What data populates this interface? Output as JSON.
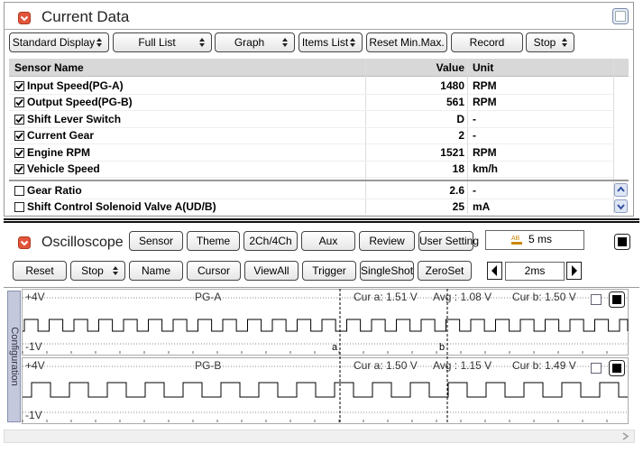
{
  "current_data": {
    "title": "Current Data",
    "toolbar": [
      {
        "label": "Standard Display",
        "dropdown": true
      },
      {
        "label": "Full List",
        "dropdown": true
      },
      {
        "label": "Graph",
        "dropdown": true
      },
      {
        "label": "Items List",
        "dropdown": true
      },
      {
        "label": "Reset Min.Max.",
        "dropdown": false
      },
      {
        "label": "Record",
        "dropdown": false
      },
      {
        "label": "Stop",
        "dropdown": true
      }
    ],
    "columns": [
      "Sensor Name",
      "Value",
      "Unit"
    ],
    "rows": [
      {
        "name": "Input Speed(PG-A)",
        "value": 1480,
        "unit": "RPM",
        "checked": true
      },
      {
        "name": "Output Speed(PG-B)",
        "value": 561,
        "unit": "RPM",
        "checked": true
      },
      {
        "name": "Shift Lever Switch",
        "value": "D",
        "unit": "-",
        "checked": true
      },
      {
        "name": "Current Gear",
        "value": 2,
        "unit": "-",
        "checked": true
      },
      {
        "name": "Engine RPM",
        "value": 1521,
        "unit": "RPM",
        "checked": true
      },
      {
        "name": "Vehicle Speed",
        "value": 18,
        "unit": "km/h",
        "checked": true
      },
      {
        "name": "Gear Ratio",
        "value": 2.6,
        "unit": "-",
        "checked": false
      },
      {
        "name": "Shift Control Solenoid Valve A(UD/B)",
        "value": 25,
        "unit": "mA",
        "checked": false
      }
    ]
  },
  "oscilloscope": {
    "title": "Oscilloscope",
    "buttons": [
      "Sensor",
      "Theme",
      "2Ch/4Ch",
      "Aux",
      "Review",
      "User Setting"
    ],
    "timebase": "5 ms",
    "controls": [
      {
        "label": "Reset",
        "dropdown": false
      },
      {
        "label": "Stop",
        "dropdown": true
      },
      {
        "label": "Name",
        "dropdown": false
      },
      {
        "label": "Cursor",
        "dropdown": false
      },
      {
        "label": "ViewAll",
        "dropdown": false
      },
      {
        "label": "Trigger",
        "dropdown": false
      },
      {
        "label": "SingleShot",
        "dropdown": false
      },
      {
        "label": "ZeroSet",
        "dropdown": false
      }
    ],
    "zoom": "2ms",
    "side_tab": "Configuration",
    "channels": [
      {
        "max": "+4V",
        "min": "-1V",
        "name": "PG-A",
        "cur_a": "Cur a: 1.51 V",
        "avg": "Avg : 1.08 V",
        "cur_b": "Cur b: 1.50 V"
      },
      {
        "max": "+4V",
        "min": "-1V",
        "name": "PG-B",
        "cur_a": "Cur a: 1.50 V",
        "avg": "Avg : 1.15 V",
        "cur_b": "Cur b: 1.49 V"
      }
    ],
    "cursors": [
      "a",
      "b"
    ]
  }
}
